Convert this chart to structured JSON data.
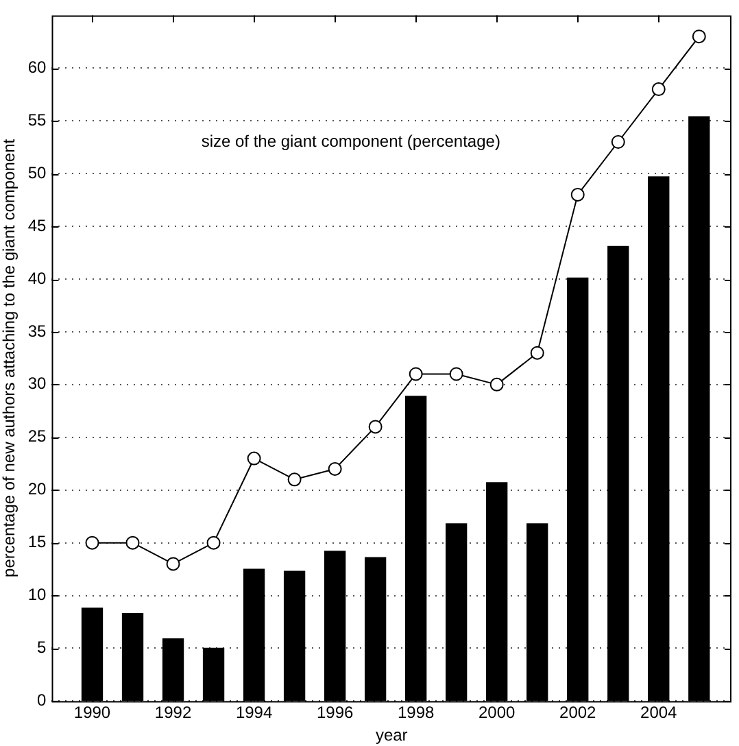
{
  "chart_data": {
    "type": "bar",
    "xlabel": "year",
    "ylabel": "percentage of new authors attaching to the giant component",
    "x": [
      1990,
      1991,
      1992,
      1993,
      1994,
      1995,
      1996,
      1997,
      1998,
      1999,
      2000,
      2001,
      2002,
      2003,
      2004,
      2005
    ],
    "series": [
      {
        "color": "#000000",
        "values": [
          8.8,
          8.3,
          5.9,
          5.0,
          12.5,
          12.3,
          14.2,
          13.6,
          28.9,
          16.8,
          20.7,
          16.8,
          40.1,
          43.1,
          49.7,
          55.4
        ]
      },
      {
        "type": "line",
        "name": "size of the giant component (percentage)",
        "color": "#000000",
        "marker": "circle",
        "line_style": "solid",
        "values": [
          15,
          15,
          13,
          15,
          23,
          21,
          22,
          26,
          31,
          31,
          30,
          33,
          48,
          53,
          58,
          63
        ]
      }
    ],
    "xlim": [
      1989,
      2005.8
    ],
    "xticks": [
      1990,
      1992,
      1994,
      1996,
      1998,
      2000,
      2002,
      2004
    ],
    "ylim": [
      0,
      65
    ],
    "yticks": [
      0,
      5,
      10,
      15,
      20,
      25,
      30,
      35,
      40,
      45,
      50,
      55,
      60
    ],
    "grid": "y",
    "legend": false
  }
}
